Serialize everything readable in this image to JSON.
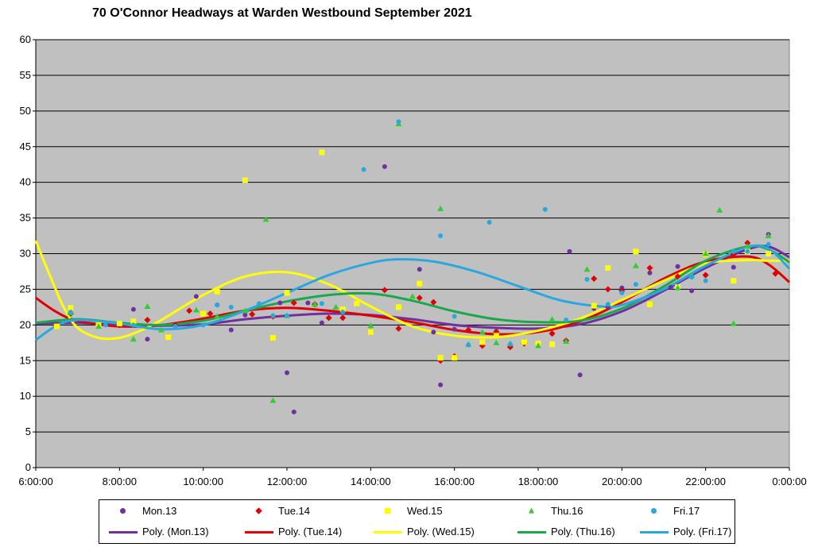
{
  "chart_data": {
    "type": "scatter",
    "title": "70 O'Connor Headways at Warden Westbound September 2021",
    "xlabel": "",
    "ylabel": "",
    "ylim": [
      0,
      60
    ],
    "xlim": [
      "6:00:00",
      "0:00:00"
    ],
    "x_ticks": [
      "6:00:00",
      "8:00:00",
      "10:00:00",
      "12:00:00",
      "14:00:00",
      "16:00:00",
      "18:00:00",
      "20:00:00",
      "22:00:00",
      "0:00:00"
    ],
    "y_ticks": [
      "0",
      "5",
      "10",
      "15",
      "20",
      "25",
      "30",
      "35",
      "40",
      "45",
      "50",
      "55",
      "60"
    ],
    "plot_background": "#c0c0c0",
    "grid": "horizontal",
    "legend_position": "bottom",
    "series": [
      {
        "name": "Mon.13",
        "color": "#7030a0",
        "marker": "circle",
        "points": [
          [
            "8:20",
            22.2
          ],
          [
            "8:40",
            18.0
          ],
          [
            "9:10",
            18.4
          ],
          [
            "9:50",
            24.0
          ],
          [
            "10:20",
            22.8
          ],
          [
            "10:40",
            19.3
          ],
          [
            "11:00",
            21.4
          ],
          [
            "11:50",
            23.1
          ],
          [
            "12:00",
            13.3
          ],
          [
            "12:10",
            7.8
          ],
          [
            "12:30",
            23.1
          ],
          [
            "12:50",
            20.3
          ],
          [
            "13:20",
            22.1
          ],
          [
            "13:40",
            22.9
          ],
          [
            "14:20",
            42.2
          ],
          [
            "15:10",
            27.8
          ],
          [
            "15:30",
            19.0
          ],
          [
            "15:40",
            11.6
          ],
          [
            "16:00",
            19.4
          ],
          [
            "16:40",
            17.2
          ],
          [
            "17:00",
            19.1
          ],
          [
            "17:20",
            17.2
          ],
          [
            "17:40",
            17.7
          ],
          [
            "18:00",
            17.1
          ],
          [
            "18:20",
            18.8
          ],
          [
            "18:45",
            30.3
          ],
          [
            "19:00",
            13.0
          ],
          [
            "19:20",
            22.3
          ],
          [
            "19:40",
            22.5
          ],
          [
            "20:00",
            25.2
          ],
          [
            "20:40",
            27.3
          ],
          [
            "21:10",
            25.3
          ],
          [
            "21:20",
            28.2
          ],
          [
            "21:40",
            24.8
          ],
          [
            "22:00",
            27.0
          ],
          [
            "22:40",
            28.1
          ],
          [
            "23:00",
            30.3
          ],
          [
            "23:30",
            32.7
          ]
        ]
      },
      {
        "name": "Tue.14",
        "color": "#e00000",
        "marker": "diamond",
        "points": [
          [
            "6:50",
            21.6
          ],
          [
            "8:00",
            20.0
          ],
          [
            "8:40",
            20.7
          ],
          [
            "9:20",
            20.0
          ],
          [
            "9:40",
            22.0
          ],
          [
            "10:10",
            21.6
          ],
          [
            "11:10",
            21.5
          ],
          [
            "11:40",
            21.2
          ],
          [
            "12:10",
            23.1
          ],
          [
            "12:40",
            22.9
          ],
          [
            "13:00",
            21.0
          ],
          [
            "13:20",
            21.0
          ],
          [
            "14:00",
            19.0
          ],
          [
            "14:20",
            24.9
          ],
          [
            "14:40",
            19.5
          ],
          [
            "15:10",
            23.8
          ],
          [
            "15:30",
            23.2
          ],
          [
            "15:40",
            15.0
          ],
          [
            "16:00",
            15.6
          ],
          [
            "16:20",
            19.3
          ],
          [
            "16:40",
            17.1
          ],
          [
            "17:00",
            19.0
          ],
          [
            "17:20",
            16.9
          ],
          [
            "17:40",
            17.4
          ],
          [
            "18:00",
            17.2
          ],
          [
            "18:20",
            18.8
          ],
          [
            "18:40",
            17.8
          ],
          [
            "19:20",
            26.5
          ],
          [
            "19:40",
            25.0
          ],
          [
            "20:00",
            24.8
          ],
          [
            "20:40",
            28.0
          ],
          [
            "21:20",
            26.8
          ],
          [
            "22:00",
            27.0
          ],
          [
            "22:40",
            29.9
          ],
          [
            "23:00",
            31.5
          ],
          [
            "23:40",
            27.2
          ]
        ]
      },
      {
        "name": "Wed.15",
        "color": "#ffff00",
        "marker": "square",
        "points": [
          [
            "6:30",
            19.8
          ],
          [
            "6:50",
            22.4
          ],
          [
            "7:30",
            20.0
          ],
          [
            "8:00",
            20.2
          ],
          [
            "8:20",
            20.5
          ],
          [
            "9:10",
            18.3
          ],
          [
            "10:00",
            21.6
          ],
          [
            "10:20",
            24.7
          ],
          [
            "11:00",
            40.3
          ],
          [
            "11:40",
            18.2
          ],
          [
            "12:00",
            24.5
          ],
          [
            "12:50",
            44.2
          ],
          [
            "13:20",
            22.2
          ],
          [
            "13:40",
            23.0
          ],
          [
            "14:00",
            19.0
          ],
          [
            "14:40",
            22.5
          ],
          [
            "15:10",
            25.8
          ],
          [
            "15:40",
            15.4
          ],
          [
            "16:00",
            15.4
          ],
          [
            "16:40",
            17.6
          ],
          [
            "17:00",
            18.5
          ],
          [
            "17:40",
            17.6
          ],
          [
            "18:00",
            17.4
          ],
          [
            "18:20",
            17.3
          ],
          [
            "19:20",
            22.7
          ],
          [
            "19:40",
            28.0
          ],
          [
            "20:20",
            30.3
          ],
          [
            "20:40",
            22.9
          ],
          [
            "21:20",
            25.3
          ],
          [
            "22:00",
            29.9
          ],
          [
            "22:40",
            26.2
          ],
          [
            "23:00",
            30.3
          ],
          [
            "23:30",
            30.0
          ]
        ]
      },
      {
        "name": "Thu.16",
        "color": "#33cc33",
        "marker": "triangle",
        "points": [
          [
            "6:50",
            21.7
          ],
          [
            "7:30",
            19.8
          ],
          [
            "8:20",
            18.0
          ],
          [
            "8:40",
            22.6
          ],
          [
            "9:00",
            19.3
          ],
          [
            "9:50",
            22.1
          ],
          [
            "10:20",
            21.2
          ],
          [
            "11:00",
            22.0
          ],
          [
            "11:30",
            34.8
          ],
          [
            "11:40",
            9.4
          ],
          [
            "12:00",
            21.3
          ],
          [
            "12:40",
            22.9
          ],
          [
            "13:10",
            22.5
          ],
          [
            "14:00",
            19.9
          ],
          [
            "14:40",
            48.2
          ],
          [
            "15:00",
            24.0
          ],
          [
            "15:40",
            36.3
          ],
          [
            "16:20",
            17.3
          ],
          [
            "16:40",
            19.0
          ],
          [
            "17:00",
            17.5
          ],
          [
            "17:20",
            17.4
          ],
          [
            "18:00",
            17.1
          ],
          [
            "18:20",
            20.8
          ],
          [
            "18:40",
            17.7
          ],
          [
            "19:10",
            27.8
          ],
          [
            "20:20",
            28.3
          ],
          [
            "21:20",
            25.2
          ],
          [
            "21:40",
            27.0
          ],
          [
            "22:00",
            30.0
          ],
          [
            "22:20",
            36.1
          ],
          [
            "22:40",
            20.2
          ],
          [
            "23:00",
            31.0
          ],
          [
            "23:30",
            32.5
          ]
        ]
      },
      {
        "name": "Fri.17",
        "color": "#29a8e0",
        "marker": "circle",
        "points": [
          [
            "6:50",
            21.8
          ],
          [
            "7:40",
            20.0
          ],
          [
            "8:20",
            20.0
          ],
          [
            "9:20",
            19.8
          ],
          [
            "10:00",
            20.0
          ],
          [
            "10:20",
            22.8
          ],
          [
            "10:40",
            22.5
          ],
          [
            "11:20",
            23.0
          ],
          [
            "11:40",
            21.3
          ],
          [
            "12:00",
            21.3
          ],
          [
            "12:50",
            23.0
          ],
          [
            "13:20",
            21.8
          ],
          [
            "13:50",
            41.8
          ],
          [
            "14:40",
            48.5
          ],
          [
            "15:40",
            32.5
          ],
          [
            "16:00",
            21.2
          ],
          [
            "16:20",
            17.2
          ],
          [
            "16:50",
            34.4
          ],
          [
            "17:20",
            17.3
          ],
          [
            "18:10",
            36.2
          ],
          [
            "18:40",
            20.7
          ],
          [
            "19:10",
            26.4
          ],
          [
            "19:40",
            22.9
          ],
          [
            "20:00",
            24.5
          ],
          [
            "20:20",
            25.7
          ],
          [
            "21:40",
            26.7
          ],
          [
            "22:00",
            26.2
          ],
          [
            "22:40",
            30.3
          ],
          [
            "23:00",
            30.3
          ],
          [
            "23:30",
            31.3
          ]
        ]
      }
    ],
    "trendlines": [
      {
        "name": "Poly. (Mon.13)",
        "color": "#7030a0",
        "points": [
          [
            "6:00",
            20.2
          ],
          [
            "7:00",
            20.3
          ],
          [
            "8:00",
            20.0
          ],
          [
            "9:00",
            19.9
          ],
          [
            "10:00",
            20.1
          ],
          [
            "11:00",
            20.8
          ],
          [
            "12:00",
            21.3
          ],
          [
            "13:00",
            21.6
          ],
          [
            "14:00",
            21.4
          ],
          [
            "15:00",
            20.8
          ],
          [
            "16:00",
            20.0
          ],
          [
            "17:00",
            19.6
          ],
          [
            "18:00",
            19.5
          ],
          [
            "19:00",
            20.1
          ],
          [
            "20:00",
            21.9
          ],
          [
            "21:00",
            24.8
          ],
          [
            "22:00",
            28.0
          ],
          [
            "23:00",
            30.6
          ],
          [
            "23:30",
            31.0
          ],
          [
            "0:00",
            29.5
          ]
        ]
      },
      {
        "name": "Poly. (Tue.14)",
        "color": "#e00000",
        "points": [
          [
            "6:00",
            23.8
          ],
          [
            "6:30",
            21.8
          ],
          [
            "7:00",
            20.6
          ],
          [
            "8:00",
            19.8
          ],
          [
            "9:00",
            20.0
          ],
          [
            "10:00",
            20.9
          ],
          [
            "11:00",
            22.0
          ],
          [
            "12:00",
            22.4
          ],
          [
            "13:00",
            22.0
          ],
          [
            "14:00",
            21.3
          ],
          [
            "15:00",
            20.4
          ],
          [
            "16:00",
            19.3
          ],
          [
            "17:00",
            18.7
          ],
          [
            "18:00",
            19.0
          ],
          [
            "19:00",
            20.5
          ],
          [
            "20:00",
            23.2
          ],
          [
            "21:00",
            26.5
          ],
          [
            "22:00",
            28.9
          ],
          [
            "23:00",
            29.6
          ],
          [
            "23:30",
            28.5
          ],
          [
            "0:00",
            26.0
          ]
        ]
      },
      {
        "name": "Poly. (Wed.15)",
        "color": "#ffff00",
        "points": [
          [
            "6:00",
            31.8
          ],
          [
            "6:20",
            27.0
          ],
          [
            "6:40",
            22.5
          ],
          [
            "7:00",
            19.6
          ],
          [
            "7:30",
            18.2
          ],
          [
            "8:00",
            18.2
          ],
          [
            "8:30",
            19.2
          ],
          [
            "9:00",
            20.7
          ],
          [
            "10:00",
            24.2
          ],
          [
            "11:00",
            26.8
          ],
          [
            "12:00",
            27.4
          ],
          [
            "13:00",
            25.7
          ],
          [
            "14:00",
            22.6
          ],
          [
            "15:00",
            19.8
          ],
          [
            "16:00",
            18.5
          ],
          [
            "17:00",
            18.3
          ],
          [
            "18:00",
            19.2
          ],
          [
            "19:00",
            20.9
          ],
          [
            "20:00",
            23.5
          ],
          [
            "21:00",
            26.2
          ],
          [
            "22:00",
            28.6
          ],
          [
            "23:00",
            29.1
          ],
          [
            "23:30",
            29.0
          ],
          [
            "0:00",
            29.0
          ]
        ]
      },
      {
        "name": "Poly. (Thu.16)",
        "color": "#1aa84a",
        "points": [
          [
            "6:00",
            20.3
          ],
          [
            "7:00",
            20.8
          ],
          [
            "8:00",
            20.3
          ],
          [
            "9:00",
            20.0
          ],
          [
            "10:00",
            20.6
          ],
          [
            "11:00",
            22.0
          ],
          [
            "12:00",
            23.3
          ],
          [
            "13:00",
            24.2
          ],
          [
            "14:00",
            24.4
          ],
          [
            "15:00",
            23.4
          ],
          [
            "16:00",
            21.9
          ],
          [
            "17:00",
            20.8
          ],
          [
            "18:00",
            20.4
          ],
          [
            "19:00",
            20.6
          ],
          [
            "20:00",
            22.3
          ],
          [
            "21:00",
            25.4
          ],
          [
            "22:00",
            29.0
          ],
          [
            "23:00",
            31.0
          ],
          [
            "23:30",
            30.6
          ],
          [
            "0:00",
            28.8
          ]
        ]
      },
      {
        "name": "Poly. (Fri.17)",
        "color": "#29a8e0",
        "points": [
          [
            "6:00",
            17.9
          ],
          [
            "6:30",
            19.9
          ],
          [
            "7:00",
            20.7
          ],
          [
            "8:00",
            20.2
          ],
          [
            "9:00",
            19.4
          ],
          [
            "10:00",
            20.0
          ],
          [
            "11:00",
            22.0
          ],
          [
            "12:00",
            24.5
          ],
          [
            "13:00",
            27.0
          ],
          [
            "14:00",
            28.7
          ],
          [
            "14:40",
            29.2
          ],
          [
            "15:30",
            28.9
          ],
          [
            "16:30",
            27.5
          ],
          [
            "17:30",
            25.5
          ],
          [
            "18:30",
            23.5
          ],
          [
            "19:30",
            22.6
          ],
          [
            "20:00",
            22.8
          ],
          [
            "21:00",
            25.0
          ],
          [
            "22:00",
            28.3
          ],
          [
            "23:00",
            30.9
          ],
          [
            "23:30",
            30.7
          ],
          [
            "0:00",
            27.9
          ]
        ]
      }
    ]
  }
}
